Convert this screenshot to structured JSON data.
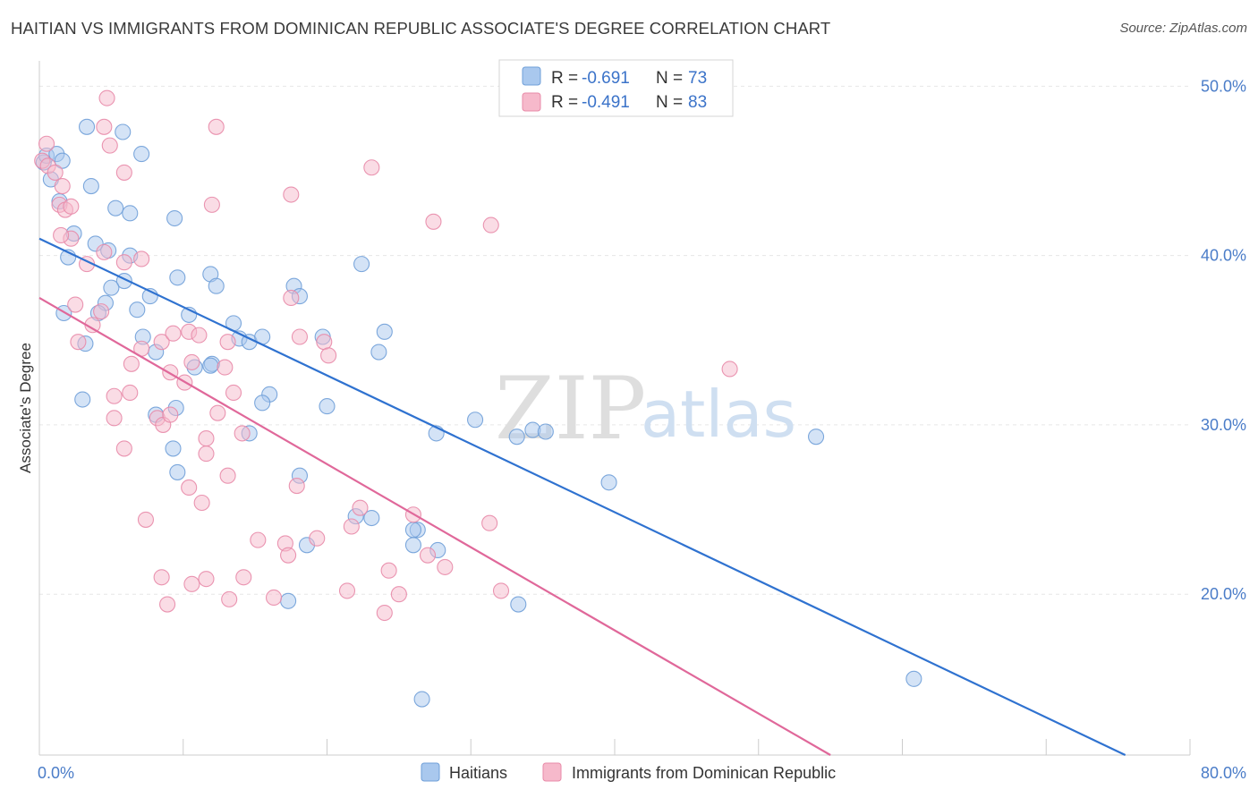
{
  "title": "HAITIAN VS IMMIGRANTS FROM DOMINICAN REPUBLIC ASSOCIATE'S DEGREE CORRELATION CHART",
  "source": "Source: ZipAtlas.com",
  "watermark": {
    "zip": "ZIP",
    "atlas": "atlas"
  },
  "colors": {
    "blue_fill": "#a9c8ee",
    "blue_stroke": "#6f9fd8",
    "blue_line": "#2f72d0",
    "pink_fill": "#f6b9cb",
    "pink_stroke": "#e88aa8",
    "pink_line": "#e0689a",
    "tick_text": "#4a7cc8",
    "grid": "#e6e6e6"
  },
  "legend": {
    "rows": [
      {
        "r_label": "R = ",
        "r_value": "-0.691",
        "n_label": "N = ",
        "n_value": "73"
      },
      {
        "r_label": "R = ",
        "r_value": "-0.491",
        "n_label": "N = ",
        "n_value": "83"
      }
    ]
  },
  "chart_data": {
    "type": "scatter",
    "ylabel": "Associate's Degree",
    "xlabel": "",
    "xlim": [
      0,
      80
    ],
    "ylim": [
      10.5,
      51.5
    ],
    "x_tick_labels": [
      {
        "value": 0,
        "label": "0.0%"
      },
      {
        "value": 80,
        "label": "80.0%"
      }
    ],
    "y_tick_labels": [
      {
        "value": 20,
        "label": "20.0%"
      },
      {
        "value": 30,
        "label": "30.0%"
      },
      {
        "value": 40,
        "label": "40.0%"
      },
      {
        "value": 50,
        "label": "50.0%"
      }
    ],
    "grid": true,
    "legend_position": "bottom-center",
    "series": [
      {
        "name": "Haitians",
        "trend": {
          "x0": 0,
          "y0": 41.0,
          "x1": 75.5,
          "y1": 10.5
        },
        "points": [
          [
            0.3,
            45.5
          ],
          [
            0.5,
            45.9
          ],
          [
            0.8,
            44.5
          ],
          [
            1.2,
            46.0
          ],
          [
            1.6,
            45.6
          ],
          [
            3.3,
            47.6
          ],
          [
            5.8,
            47.3
          ],
          [
            7.1,
            46.0
          ],
          [
            1.4,
            43.2
          ],
          [
            3.6,
            44.1
          ],
          [
            5.3,
            42.8
          ],
          [
            6.3,
            42.5
          ],
          [
            9.4,
            42.2
          ],
          [
            2.4,
            41.3
          ],
          [
            2.0,
            39.9
          ],
          [
            3.9,
            40.7
          ],
          [
            4.8,
            40.3
          ],
          [
            6.3,
            40.0
          ],
          [
            5.9,
            38.5
          ],
          [
            7.7,
            37.6
          ],
          [
            5.0,
            38.1
          ],
          [
            4.6,
            37.2
          ],
          [
            6.8,
            36.8
          ],
          [
            9.6,
            38.7
          ],
          [
            10.4,
            36.5
          ],
          [
            11.9,
            38.9
          ],
          [
            12.3,
            38.2
          ],
          [
            13.5,
            36.0
          ],
          [
            13.9,
            35.1
          ],
          [
            12.0,
            33.6
          ],
          [
            14.6,
            34.9
          ],
          [
            8.1,
            34.3
          ],
          [
            7.2,
            35.2
          ],
          [
            17.7,
            38.2
          ],
          [
            18.1,
            37.6
          ],
          [
            19.7,
            35.2
          ],
          [
            22.4,
            39.5
          ],
          [
            24.0,
            35.5
          ],
          [
            23.6,
            34.3
          ],
          [
            1.7,
            36.6
          ],
          [
            4.1,
            36.6
          ],
          [
            3.2,
            34.8
          ],
          [
            10.8,
            33.4
          ],
          [
            11.9,
            33.5
          ],
          [
            16.0,
            31.8
          ],
          [
            15.5,
            31.3
          ],
          [
            20.0,
            31.1
          ],
          [
            8.1,
            30.6
          ],
          [
            14.6,
            29.5
          ],
          [
            27.6,
            29.5
          ],
          [
            30.3,
            30.3
          ],
          [
            33.2,
            29.3
          ],
          [
            34.3,
            29.7
          ],
          [
            35.2,
            29.6
          ],
          [
            39.6,
            26.6
          ],
          [
            9.3,
            28.6
          ],
          [
            9.6,
            27.2
          ],
          [
            18.1,
            27.0
          ],
          [
            18.6,
            22.9
          ],
          [
            22.0,
            24.6
          ],
          [
            23.1,
            24.5
          ],
          [
            26.3,
            23.8
          ],
          [
            26.0,
            22.9
          ],
          [
            27.7,
            22.6
          ],
          [
            17.3,
            19.6
          ],
          [
            33.3,
            19.4
          ],
          [
            26.6,
            13.8
          ],
          [
            54.0,
            29.3
          ],
          [
            60.8,
            15.0
          ],
          [
            26.0,
            23.8
          ],
          [
            3.0,
            31.5
          ],
          [
            9.5,
            31.0
          ],
          [
            15.5,
            35.2
          ]
        ]
      },
      {
        "name": "Immigrants from Dominican Republic",
        "trend": {
          "x0": 0,
          "y0": 37.5,
          "x1": 55.0,
          "y1": 10.5
        },
        "points": [
          [
            0.2,
            45.6
          ],
          [
            0.5,
            46.6
          ],
          [
            0.6,
            45.3
          ],
          [
            1.1,
            44.9
          ],
          [
            1.6,
            44.1
          ],
          [
            1.4,
            43.0
          ],
          [
            1.8,
            42.7
          ],
          [
            2.2,
            42.9
          ],
          [
            4.5,
            47.6
          ],
          [
            4.9,
            46.5
          ],
          [
            5.9,
            44.9
          ],
          [
            4.7,
            49.3
          ],
          [
            12.3,
            47.6
          ],
          [
            12.0,
            43.0
          ],
          [
            17.5,
            43.6
          ],
          [
            23.1,
            45.2
          ],
          [
            27.4,
            42.0
          ],
          [
            31.4,
            41.8
          ],
          [
            2.2,
            41.0
          ],
          [
            4.5,
            40.2
          ],
          [
            3.3,
            39.5
          ],
          [
            5.9,
            39.6
          ],
          [
            1.5,
            41.2
          ],
          [
            7.1,
            39.8
          ],
          [
            2.5,
            37.1
          ],
          [
            4.3,
            36.7
          ],
          [
            3.7,
            35.9
          ],
          [
            2.7,
            34.9
          ],
          [
            7.1,
            34.5
          ],
          [
            8.5,
            34.9
          ],
          [
            9.3,
            35.4
          ],
          [
            10.4,
            35.5
          ],
          [
            11.1,
            35.3
          ],
          [
            13.1,
            34.9
          ],
          [
            17.5,
            37.5
          ],
          [
            18.1,
            35.2
          ],
          [
            19.8,
            34.9
          ],
          [
            6.4,
            33.6
          ],
          [
            9.1,
            33.1
          ],
          [
            10.6,
            33.7
          ],
          [
            12.9,
            33.4
          ],
          [
            5.2,
            31.7
          ],
          [
            6.3,
            31.9
          ],
          [
            10.1,
            32.5
          ],
          [
            13.5,
            31.9
          ],
          [
            20.1,
            34.1
          ],
          [
            48.0,
            33.3
          ],
          [
            5.2,
            30.4
          ],
          [
            8.2,
            30.4
          ],
          [
            8.6,
            30.0
          ],
          [
            9.1,
            30.6
          ],
          [
            11.6,
            29.2
          ],
          [
            12.4,
            30.7
          ],
          [
            14.1,
            29.5
          ],
          [
            5.9,
            28.6
          ],
          [
            11.6,
            28.3
          ],
          [
            13.1,
            27.0
          ],
          [
            10.4,
            26.3
          ],
          [
            11.3,
            25.4
          ],
          [
            17.9,
            26.4
          ],
          [
            7.4,
            24.4
          ],
          [
            15.2,
            23.2
          ],
          [
            17.1,
            23.0
          ],
          [
            19.3,
            23.3
          ],
          [
            21.7,
            24.0
          ],
          [
            22.3,
            25.1
          ],
          [
            26.0,
            24.7
          ],
          [
            27.0,
            22.3
          ],
          [
            31.3,
            24.2
          ],
          [
            8.5,
            21.0
          ],
          [
            10.6,
            20.6
          ],
          [
            11.6,
            20.9
          ],
          [
            14.2,
            21.0
          ],
          [
            16.3,
            19.8
          ],
          [
            17.3,
            22.3
          ],
          [
            13.2,
            19.7
          ],
          [
            8.9,
            19.4
          ],
          [
            21.4,
            20.2
          ],
          [
            24.3,
            21.4
          ],
          [
            28.2,
            21.6
          ],
          [
            25.0,
            20.0
          ],
          [
            24.0,
            18.9
          ],
          [
            32.1,
            20.2
          ]
        ]
      }
    ]
  },
  "bottom_legend": [
    "Haitians",
    "Immigrants from Dominican Republic"
  ]
}
